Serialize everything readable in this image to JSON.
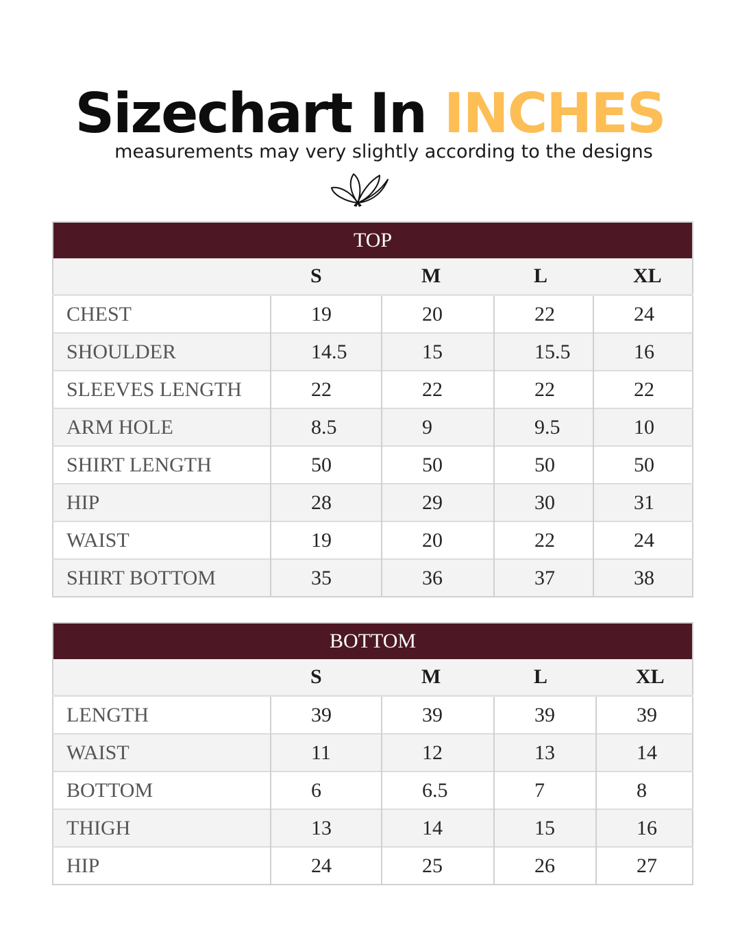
{
  "header": {
    "title_main": "Sizechart In",
    "title_accent": "INCHES",
    "subtitle": "measurements may very slightly according to the designs"
  },
  "colors": {
    "accent": "#fdbe56",
    "banner": "#4d1824"
  },
  "logo_icon": "lotus-flower-icon",
  "top_table": {
    "title": "TOP",
    "sizes": [
      "S",
      "M",
      "L",
      "XL"
    ],
    "rows": [
      {
        "label": "CHEST",
        "values": [
          "19",
          "20",
          "22",
          "24"
        ]
      },
      {
        "label": "SHOULDER",
        "values": [
          "14.5",
          "15",
          "15.5",
          "16"
        ]
      },
      {
        "label": "SLEEVES LENGTH",
        "values": [
          "22",
          "22",
          "22",
          "22"
        ]
      },
      {
        "label": "ARM HOLE",
        "values": [
          "8.5",
          "9",
          "9.5",
          "10"
        ]
      },
      {
        "label": "SHIRT LENGTH",
        "values": [
          "50",
          "50",
          "50",
          "50"
        ]
      },
      {
        "label": "HIP",
        "values": [
          "28",
          "29",
          "30",
          "31"
        ]
      },
      {
        "label": "WAIST",
        "values": [
          "19",
          "20",
          "22",
          "24"
        ]
      },
      {
        "label": "SHIRT BOTTOM",
        "values": [
          "35",
          "36",
          "37",
          "38"
        ]
      }
    ]
  },
  "bottom_table": {
    "title": "BOTTOM",
    "sizes": [
      "S",
      "M",
      "L",
      "XL"
    ],
    "rows": [
      {
        "label": "LENGTH",
        "values": [
          "39",
          "39",
          "39",
          "39"
        ]
      },
      {
        "label": "WAIST",
        "values": [
          "11",
          "12",
          "13",
          "14"
        ]
      },
      {
        "label": "BOTTOM",
        "values": [
          "6",
          "6.5",
          "7",
          "8"
        ]
      },
      {
        "label": "THIGH",
        "values": [
          "13",
          "14",
          "15",
          "16"
        ]
      },
      {
        "label": "HIP",
        "values": [
          "24",
          "25",
          "26",
          "27"
        ]
      }
    ]
  }
}
